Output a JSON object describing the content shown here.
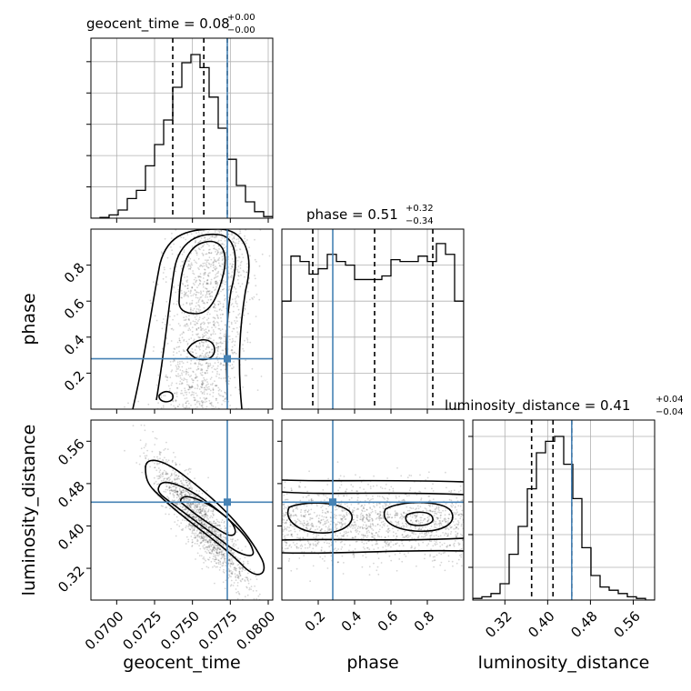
{
  "figure": {
    "type": "corner plot",
    "parameters": [
      "geocent_time",
      "phase",
      "luminosity_distance"
    ],
    "injected_values": {
      "geocent_time": 0.0773,
      "phase": 0.28,
      "luminosity_distance": 0.445
    },
    "colors": {
      "truth": "#4682b4",
      "contour": "#000000",
      "grid": "#b0b0b0",
      "hist": "#000000"
    }
  },
  "titles": {
    "geocent_time": {
      "main": "geocent_time = 0.08",
      "sup": "+0.00",
      "sub": "−0.00"
    },
    "phase": {
      "main": "phase = 0.51",
      "sup": "+0.32",
      "sub": "−0.34"
    },
    "luminosity_distance": {
      "main": "luminosity_distance = 0.41",
      "sup": "+0.04",
      "sub": "−0.04"
    }
  },
  "axis_labels": {
    "geocent_time": "geocent_time",
    "phase": "phase",
    "luminosity_distance": "luminosity_distance"
  },
  "chart_data": [
    {
      "type": "histogram",
      "panel": "geocent_time marginal",
      "xlim": [
        0.0683,
        0.0803
      ],
      "bin_edges": [
        0.0683,
        0.0689,
        0.0695,
        0.0701,
        0.0707,
        0.0713,
        0.0719,
        0.0725,
        0.0731,
        0.0737,
        0.0743,
        0.0749,
        0.0755,
        0.0761,
        0.0767,
        0.0773,
        0.0779,
        0.0785,
        0.0791,
        0.0797,
        0.0803
      ],
      "values": [
        0,
        0.005,
        0.02,
        0.05,
        0.12,
        0.17,
        0.32,
        0.45,
        0.6,
        0.8,
        0.95,
        1.0,
        0.92,
        0.74,
        0.55,
        0.36,
        0.2,
        0.1,
        0.04,
        0.01
      ],
      "quantiles": [
        0.0737,
        0.07575,
        0.0773
      ],
      "truth": 0.0773
    },
    {
      "type": "histogram",
      "panel": "phase marginal",
      "xlim": [
        0.0,
        1.0
      ],
      "bin_edges": [
        0.0,
        0.05,
        0.1,
        0.15,
        0.2,
        0.25,
        0.3,
        0.35,
        0.4,
        0.45,
        0.5,
        0.55,
        0.6,
        0.65,
        0.7,
        0.75,
        0.8,
        0.85,
        0.9,
        0.95,
        1.0
      ],
      "values": [
        0.6,
        0.85,
        0.82,
        0.75,
        0.78,
        0.86,
        0.82,
        0.8,
        0.72,
        0.72,
        0.72,
        0.74,
        0.83,
        0.82,
        0.82,
        0.85,
        0.82,
        0.92,
        0.86,
        0.6
      ],
      "quantiles": [
        0.17,
        0.51,
        0.83
      ],
      "truth": 0.28,
      "ylim": [
        0,
        1.0
      ]
    },
    {
      "type": "histogram",
      "panel": "luminosity_distance marginal",
      "xlim": [
        0.26,
        0.6
      ],
      "bin_edges": [
        0.26,
        0.277,
        0.294,
        0.311,
        0.328,
        0.345,
        0.362,
        0.379,
        0.396,
        0.413,
        0.43,
        0.447,
        0.464,
        0.481,
        0.498,
        0.515,
        0.532,
        0.549,
        0.566,
        0.583,
        0.6
      ],
      "values": [
        0.01,
        0.02,
        0.04,
        0.1,
        0.28,
        0.45,
        0.68,
        0.9,
        0.97,
        1.0,
        0.83,
        0.62,
        0.32,
        0.15,
        0.08,
        0.06,
        0.04,
        0.02,
        0.01,
        0.0
      ],
      "quantiles": [
        0.37,
        0.41,
        0.445
      ],
      "truth": 0.445
    },
    {
      "type": "heatmap",
      "panel": "geocent_time vs phase",
      "x": "geocent_time",
      "y": "phase",
      "xlim": [
        0.0683,
        0.0803
      ],
      "ylim": [
        0.0,
        1.0
      ],
      "peak": {
        "x": 0.0757,
        "y": 0.78
      },
      "truth": {
        "x": 0.0773,
        "y": 0.28
      },
      "xticks": [
        "0.0700",
        "0.0725",
        "0.0750",
        "0.0775",
        "0.0800"
      ],
      "yticks": [
        "0.2",
        "0.4",
        "0.6",
        "0.8"
      ]
    },
    {
      "type": "heatmap",
      "panel": "geocent_time vs luminosity_distance",
      "x": "geocent_time",
      "y": "luminosity_distance",
      "xlim": [
        0.0683,
        0.0803
      ],
      "ylim": [
        0.26,
        0.6
      ],
      "correlation": "negative",
      "truth": {
        "x": 0.0773,
        "y": 0.445
      },
      "xticks": [
        "0.0700",
        "0.0725",
        "0.0750",
        "0.0775",
        "0.0800"
      ],
      "yticks": [
        "0.32",
        "0.40",
        "0.48",
        "0.56"
      ]
    },
    {
      "type": "heatmap",
      "panel": "phase vs luminosity_distance",
      "x": "phase",
      "y": "luminosity_distance",
      "xlim": [
        0.0,
        1.0
      ],
      "ylim": [
        0.26,
        0.6
      ],
      "truth": {
        "x": 0.28,
        "y": 0.445
      },
      "xticks": [
        "0.2",
        "0.4",
        "0.6",
        "0.8"
      ]
    },
    {
      "type": "axis",
      "panel": "luminosity_distance marginal x-axis",
      "xticks": [
        "0.32",
        "0.40",
        "0.48",
        "0.56"
      ]
    }
  ]
}
